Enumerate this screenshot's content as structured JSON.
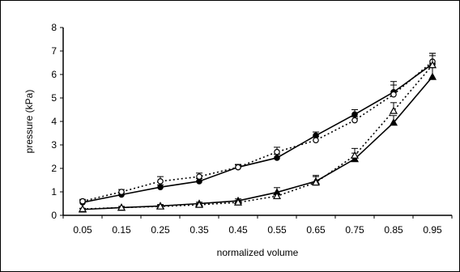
{
  "chart_data": {
    "type": "line",
    "title": "",
    "xlabel": "normalized volume",
    "ylabel": "pressure (kPa)",
    "x": [
      0.05,
      0.15,
      0.25,
      0.35,
      0.45,
      0.55,
      0.65,
      0.75,
      0.85,
      0.95
    ],
    "ylim": [
      0,
      8
    ],
    "yticks": [
      0,
      1,
      2,
      3,
      4,
      5,
      6,
      7,
      8
    ],
    "grid": false,
    "series": [
      {
        "style": "solid",
        "marker": "circle-filled",
        "values": [
          0.55,
          0.88,
          1.2,
          1.45,
          2.05,
          2.45,
          3.4,
          4.3,
          5.25,
          6.45
        ],
        "errors": [
          0.08,
          0.1,
          0.1,
          0.12,
          0.12,
          0.15,
          0.15,
          0.2,
          0.45,
          0.45
        ]
      },
      {
        "style": "dotted",
        "marker": "circle-open",
        "values": [
          0.6,
          1.0,
          1.45,
          1.65,
          2.05,
          2.7,
          3.2,
          4.05,
          5.15,
          6.55
        ],
        "errors": [
          0.08,
          0.1,
          0.2,
          0.15,
          0.1,
          0.2,
          0.15,
          0.15,
          0.4,
          0.35
        ]
      },
      {
        "style": "solid",
        "marker": "triangle-filled",
        "values": [
          0.25,
          0.33,
          0.4,
          0.5,
          0.62,
          0.98,
          1.45,
          2.4,
          3.95,
          5.9
        ],
        "errors": [
          0.03,
          0.05,
          0.06,
          0.06,
          0.08,
          0.2,
          0.25,
          0.25,
          0.3,
          0.4
        ]
      },
      {
        "style": "dotted",
        "marker": "triangle-open",
        "values": [
          0.27,
          0.33,
          0.38,
          0.45,
          0.55,
          0.82,
          1.4,
          2.55,
          4.45,
          6.4
        ],
        "errors": [
          0.03,
          0.05,
          0.06,
          0.06,
          0.08,
          0.1,
          0.25,
          0.3,
          0.35,
          0.4
        ]
      }
    ]
  }
}
